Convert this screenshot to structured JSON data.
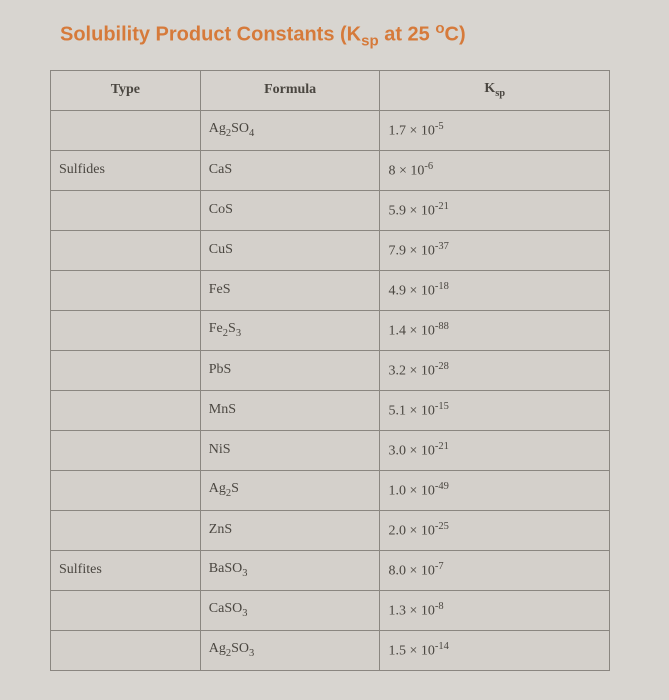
{
  "title_parts": {
    "pre": "Solubility Product Constants (K",
    "sub": "sp",
    "mid": " at 25 ",
    "sup": "o",
    "post": "C)"
  },
  "headers": {
    "type": "Type",
    "formula": "Formula",
    "ksp_pre": "K",
    "ksp_sub": "sp"
  },
  "rows": [
    {
      "type": "",
      "f_pre": "Ag",
      "f_sub1": "2",
      "f_mid": "SO",
      "f_sub2": "4",
      "k_coef": "1.7 × 10",
      "k_exp": "-5"
    },
    {
      "type": "Sulfides",
      "f_pre": "CaS",
      "f_sub1": "",
      "f_mid": "",
      "f_sub2": "",
      "k_coef": "8 × 10",
      "k_exp": "-6"
    },
    {
      "type": "",
      "f_pre": "CoS",
      "f_sub1": "",
      "f_mid": "",
      "f_sub2": "",
      "k_coef": "5.9 × 10",
      "k_exp": "-21"
    },
    {
      "type": "",
      "f_pre": "CuS",
      "f_sub1": "",
      "f_mid": "",
      "f_sub2": "",
      "k_coef": "7.9 × 10",
      "k_exp": "-37"
    },
    {
      "type": "",
      "f_pre": "FeS",
      "f_sub1": "",
      "f_mid": "",
      "f_sub2": "",
      "k_coef": "4.9 × 10",
      "k_exp": "-18"
    },
    {
      "type": "",
      "f_pre": "Fe",
      "f_sub1": "2",
      "f_mid": "S",
      "f_sub2": "3",
      "k_coef": "1.4 × 10",
      "k_exp": "-88"
    },
    {
      "type": "",
      "f_pre": "PbS",
      "f_sub1": "",
      "f_mid": "",
      "f_sub2": "",
      "k_coef": "3.2 × 10",
      "k_exp": "-28"
    },
    {
      "type": "",
      "f_pre": "MnS",
      "f_sub1": "",
      "f_mid": "",
      "f_sub2": "",
      "k_coef": "5.1 × 10",
      "k_exp": "-15"
    },
    {
      "type": "",
      "f_pre": "NiS",
      "f_sub1": "",
      "f_mid": "",
      "f_sub2": "",
      "k_coef": "3.0 × 10",
      "k_exp": "-21"
    },
    {
      "type": "",
      "f_pre": "Ag",
      "f_sub1": "2",
      "f_mid": "S",
      "f_sub2": "",
      "k_coef": "1.0 × 10",
      "k_exp": "-49"
    },
    {
      "type": "",
      "f_pre": "ZnS",
      "f_sub1": "",
      "f_mid": "",
      "f_sub2": "",
      "k_coef": "2.0 × 10",
      "k_exp": "-25"
    },
    {
      "type": "Sulfites",
      "f_pre": "BaSO",
      "f_sub1": "3",
      "f_mid": "",
      "f_sub2": "",
      "k_coef": "8.0 × 10",
      "k_exp": "-7"
    },
    {
      "type": "",
      "f_pre": "CaSO",
      "f_sub1": "3",
      "f_mid": "",
      "f_sub2": "",
      "k_coef": "1.3 × 10",
      "k_exp": "-8"
    },
    {
      "type": "",
      "f_pre": "Ag",
      "f_sub1": "2",
      "f_mid": "SO",
      "f_sub2": "3",
      "k_coef": "1.5 × 10",
      "k_exp": "-14"
    }
  ]
}
